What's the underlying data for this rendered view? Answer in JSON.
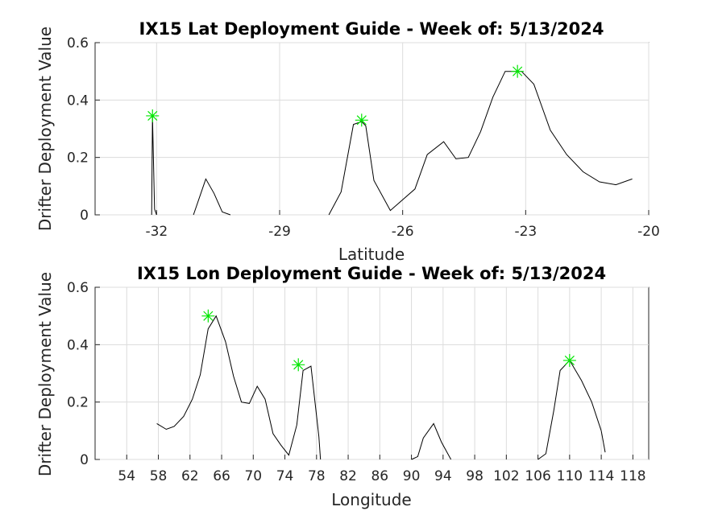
{
  "colors": {
    "line": "#000000",
    "marker": "#00e600",
    "grid": "#dcdcdc",
    "axis": "#262626"
  },
  "chart_data": [
    {
      "type": "line",
      "title": "IX15 Lat Deployment Guide - Week of: 5/13/2024",
      "xlabel": "Latitude",
      "ylabel": "Drifter Deployment Value",
      "xlim": [
        -33.5,
        -20
      ],
      "ylim": [
        0,
        0.6
      ],
      "xticks": [
        -32,
        -29,
        -26,
        -23,
        -20
      ],
      "xtick_labels": [
        "-32",
        "-29",
        "-26",
        "-23",
        "-20"
      ],
      "yticks": [
        0,
        0.2,
        0.4,
        0.6
      ],
      "ytick_labels": [
        "0",
        "0.2",
        "0.4",
        "0.6"
      ],
      "grid": true,
      "segments": [
        {
          "x": [
            -32.12,
            -32.1,
            -32.05,
            -32.0
          ],
          "y": [
            0.0,
            0.345,
            0.02,
            0.0
          ]
        },
        {
          "x": [
            -31.1,
            -30.8,
            -30.6,
            -30.4,
            -30.2
          ],
          "y": [
            0.0,
            0.125,
            0.075,
            0.01,
            0.0
          ]
        },
        {
          "x": [
            -27.8,
            -27.5,
            -27.2,
            -27.0,
            -26.9,
            -26.7,
            -26.3,
            -25.7,
            -25.4,
            -25.0,
            -24.7,
            -24.4,
            -24.1,
            -23.8,
            -23.5,
            -23.1,
            -22.8,
            -22.4,
            -22.0,
            -21.6,
            -21.2,
            -20.8,
            -20.4
          ],
          "y": [
            0.0,
            0.08,
            0.315,
            0.325,
            0.31,
            0.12,
            0.015,
            0.09,
            0.21,
            0.255,
            0.195,
            0.2,
            0.29,
            0.41,
            0.5,
            0.5,
            0.455,
            0.295,
            0.21,
            0.15,
            0.115,
            0.105,
            0.125
          ]
        }
      ],
      "peaks": [
        {
          "x": -32.1,
          "y": 0.345
        },
        {
          "x": -27.0,
          "y": 0.33
        },
        {
          "x": -23.2,
          "y": 0.5
        }
      ]
    },
    {
      "type": "line",
      "title": "IX15 Lon Deployment Guide - Week of: 5/13/2024",
      "xlabel": "Longitude",
      "ylabel": "Drifter Deployment Value",
      "xlim": [
        50,
        120
      ],
      "ylim": [
        0,
        0.6
      ],
      "xticks": [
        54,
        58,
        62,
        66,
        70,
        74,
        78,
        82,
        86,
        90,
        94,
        98,
        102,
        106,
        110,
        114,
        118
      ],
      "xtick_labels": [
        "54",
        "58",
        "62",
        "66",
        "70",
        "74",
        "78",
        "82",
        "86",
        "90",
        "94",
        "98",
        "102",
        "106",
        "110",
        "114",
        "118"
      ],
      "yticks": [
        0,
        0.2,
        0.4,
        0.6
      ],
      "ytick_labels": [
        "0",
        "0.2",
        "0.4",
        "0.6"
      ],
      "grid": true,
      "segments": [
        {
          "x": [
            57.8,
            59.0,
            60.0,
            61.2,
            62.3,
            63.3,
            64.3,
            65.3,
            66.5,
            67.5,
            68.5,
            69.5,
            70.5,
            71.5,
            72.5,
            73.5,
            74.5,
            75.5,
            76.3,
            77.3,
            78.3
          ],
          "y": [
            0.125,
            0.105,
            0.115,
            0.15,
            0.21,
            0.295,
            0.455,
            0.5,
            0.41,
            0.29,
            0.2,
            0.195,
            0.255,
            0.21,
            0.09,
            0.05,
            0.015,
            0.12,
            0.31,
            0.325,
            0.08
          ]
        },
        {
          "x": [
            78.3,
            78.5
          ],
          "y": [
            0.08,
            0.0
          ]
        },
        {
          "x": [
            90.0,
            90.8,
            91.5,
            92.8,
            93.8,
            95.0
          ],
          "y": [
            0.0,
            0.01,
            0.075,
            0.125,
            0.06,
            0.0
          ]
        },
        {
          "x": [
            106.0,
            107.0,
            108.0,
            108.8,
            110.0,
            111.5,
            112.8,
            114.0
          ],
          "y": [
            0.0,
            0.02,
            0.17,
            0.31,
            0.345,
            0.275,
            0.2,
            0.1
          ]
        },
        {
          "x": [
            114.0,
            114.5
          ],
          "y": [
            0.1,
            0.025
          ]
        }
      ],
      "peaks": [
        {
          "x": 64.3,
          "y": 0.5
        },
        {
          "x": 75.7,
          "y": 0.33
        },
        {
          "x": 110.0,
          "y": 0.345
        }
      ]
    }
  ]
}
